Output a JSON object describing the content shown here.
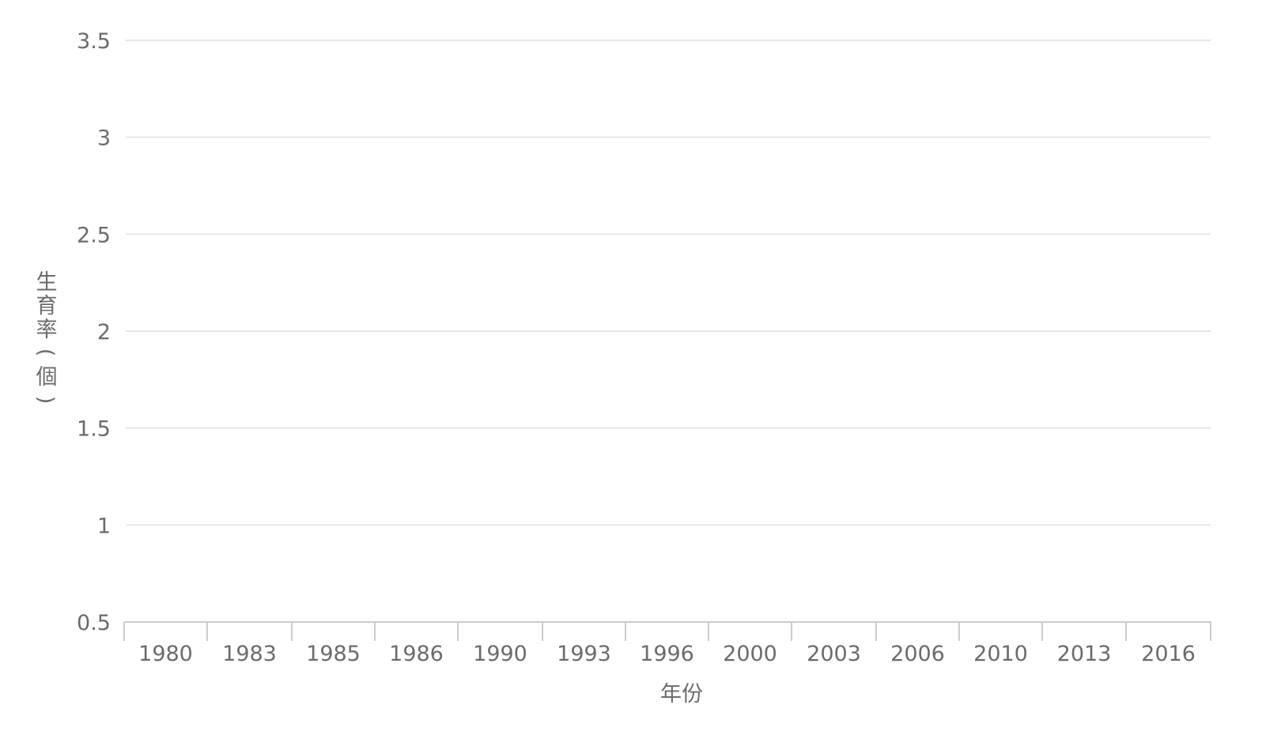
{
  "chart_data": {
    "type": "line",
    "title": "",
    "xlabel": "年份",
    "ylabel": "生育率(個)",
    "categories": [
      "1980",
      "1983",
      "1985",
      "1986",
      "1990",
      "1993",
      "1996",
      "2000",
      "2003",
      "2006",
      "2010",
      "2013",
      "2016"
    ],
    "y_ticks": [
      "0.5",
      "1",
      "1.5",
      "2",
      "2.5",
      "3",
      "3.5"
    ],
    "ylim": [
      0.5,
      3.5
    ],
    "series": [],
    "grid": true,
    "colors": {
      "grid": "#e6e6e6",
      "axis": "#cccccc",
      "text": "#6b6b6b"
    }
  }
}
